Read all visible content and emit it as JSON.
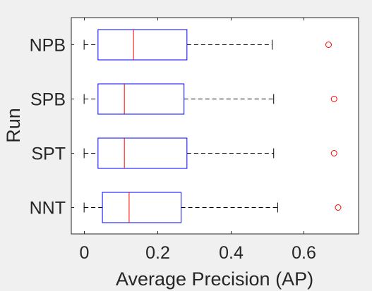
{
  "chart_data": {
    "type": "boxplot",
    "orientation": "horizontal",
    "title": "",
    "xlabel": "Average Precision (AP)",
    "ylabel": "Run",
    "xlim": [
      -0.035,
      0.75
    ],
    "xticks": [
      0,
      0.2,
      0.4,
      0.6
    ],
    "xtick_labels": [
      "0",
      "0.2",
      "0.4",
      "0.6"
    ],
    "grid": false,
    "colors": {
      "box": "#0000ff",
      "median": "#ff0000",
      "whisker": "#000000",
      "outlier": "#ff0000",
      "axes_bg": "#ffffff",
      "figure_bg": "#f0f0f0"
    },
    "categories": [
      "NPB",
      "SPB",
      "SPT",
      "NNT"
    ],
    "boxes": [
      {
        "name": "NPB",
        "min": 0.0,
        "q1": 0.038,
        "median": 0.135,
        "q3": 0.281,
        "max": 0.514,
        "outliers": [
          0.668
        ]
      },
      {
        "name": "SPB",
        "min": 0.0,
        "q1": 0.038,
        "median": 0.11,
        "q3": 0.273,
        "max": 0.518,
        "outliers": [
          0.683
        ]
      },
      {
        "name": "SPT",
        "min": 0.0,
        "q1": 0.038,
        "median": 0.11,
        "q3": 0.281,
        "max": 0.518,
        "outliers": [
          0.683
        ]
      },
      {
        "name": "NNT",
        "min": 0.0,
        "q1": 0.05,
        "median": 0.123,
        "q3": 0.265,
        "max": 0.529,
        "outliers": [
          0.694
        ]
      }
    ]
  }
}
